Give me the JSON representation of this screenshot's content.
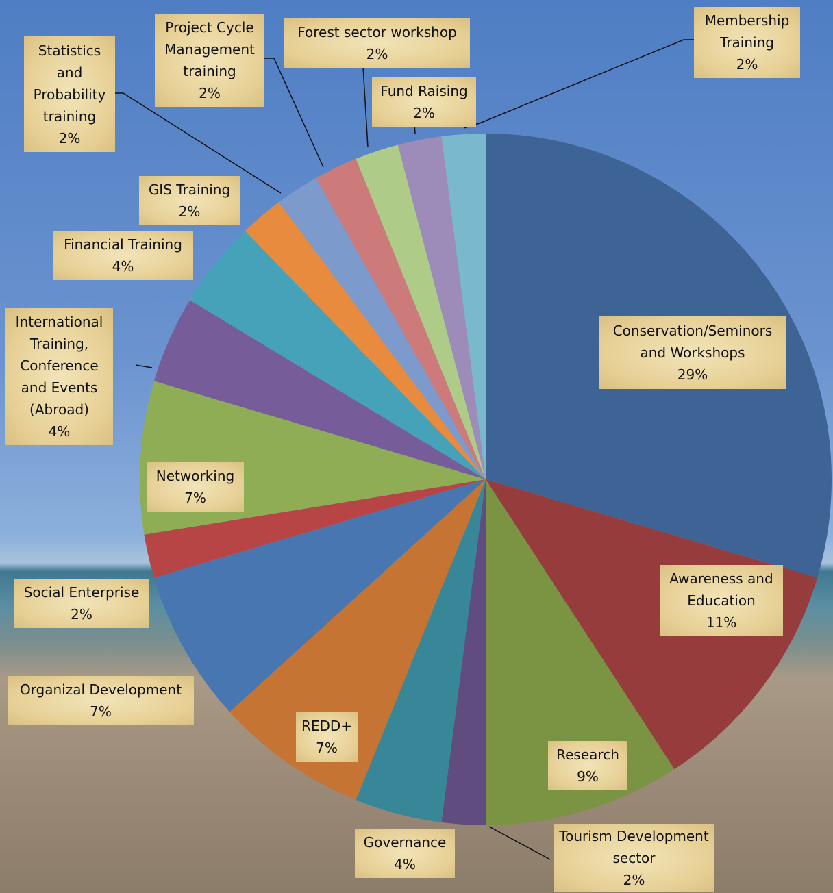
{
  "chart_data": {
    "type": "pie",
    "categories": [
      "Conservation/Seminors and Workshops",
      "Awareness and Education",
      "Research",
      "Tourism Development sector",
      "Governance",
      "REDD+",
      "Organizal Development",
      "Social Enterprise",
      "Networking",
      "International Training, Conference and Events (Abroad)",
      "Financial Training",
      "GIS Training",
      "Statistics and Probability training",
      "Project Cycle Management training",
      "Forest sector workshop",
      "Fund Raising",
      "Membership Training"
    ],
    "values": [
      29,
      11,
      9,
      2,
      4,
      7,
      7,
      2,
      7,
      4,
      4,
      2,
      2,
      2,
      2,
      2,
      2
    ],
    "value_labels": [
      "29%",
      "11%",
      "9%",
      "2%",
      "4%",
      "7%",
      "7%",
      "2%",
      "7%",
      "4%",
      "4%",
      "2%",
      "2%",
      "2%",
      "2%",
      "2%",
      "2%"
    ],
    "colors": [
      "#3d6495",
      "#963c3c",
      "#7a9443",
      "#614c80",
      "#378799",
      "#c67434",
      "#4876b0",
      "#b74546",
      "#8fad55",
      "#765d99",
      "#46a2b8",
      "#e98b3e",
      "#7d9acc",
      "#cc7b7a",
      "#aecb87",
      "#9d8bba",
      "#7ab9cd"
    ]
  }
}
